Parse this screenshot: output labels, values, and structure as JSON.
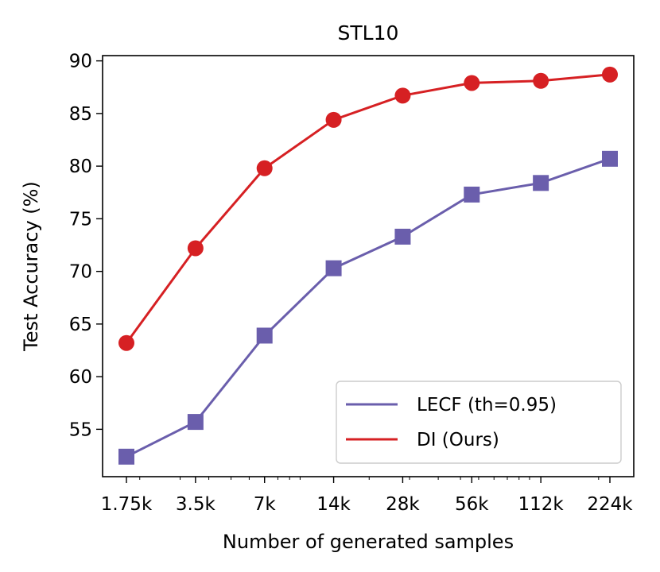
{
  "chart_data": {
    "type": "line",
    "title": "STL10",
    "xlabel": "Number of generated samples",
    "ylabel": "Test Accuracy (%)",
    "x_scale": "log",
    "categories": [
      "1.75k",
      "3.5k",
      "7k",
      "14k",
      "28k",
      "56k",
      "112k",
      "224k"
    ],
    "x": [
      1750,
      3500,
      7000,
      14000,
      28000,
      56000,
      112000,
      224000
    ],
    "ylim": [
      50.5,
      90.5
    ],
    "yticks": [
      55,
      60,
      65,
      70,
      75,
      80,
      85,
      90
    ],
    "grid": false,
    "legend_position": "lower right",
    "series": [
      {
        "name": "LECF (th=0.95)",
        "color": "#6a5eac",
        "marker": "square",
        "values": [
          52.4,
          55.7,
          63.9,
          70.3,
          73.3,
          77.3,
          78.4,
          80.7
        ]
      },
      {
        "name": "DI (Ours)",
        "color": "#d62023",
        "marker": "circle",
        "values": [
          63.2,
          72.2,
          79.8,
          84.4,
          86.7,
          87.9,
          88.1,
          88.7
        ]
      }
    ]
  }
}
